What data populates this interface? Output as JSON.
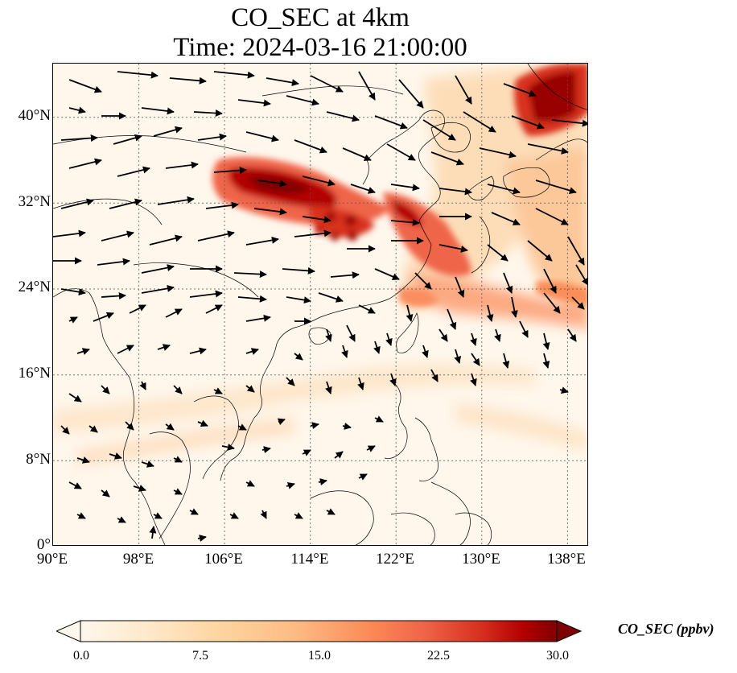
{
  "title": {
    "line1": "CO_SEC at 4km",
    "line2": "Time: 2024-03-16 21:00:00"
  },
  "map": {
    "lon_range": [
      90,
      140
    ],
    "lat_range": [
      0,
      45
    ],
    "lon_ticks": [
      "90°E",
      "98°E",
      "106°E",
      "114°E",
      "122°E",
      "130°E",
      "138°E"
    ],
    "lat_ticks": [
      "0°",
      "8°N",
      "16°N",
      "24°N",
      "32°N",
      "40°N"
    ],
    "gridlines": true,
    "field": "CO_SEC",
    "vectors": "wind arrows",
    "colors": {
      "background": "#fff7ec",
      "low": "#fdd49e",
      "mid": "#ef6548",
      "high": "#7f0000",
      "coastline": "#000000"
    }
  },
  "colorbar": {
    "title": "CO_SEC (ppbv)",
    "tick_labels": [
      "0.0",
      "7.5",
      "15.0",
      "22.5",
      "30.0"
    ],
    "range": [
      0,
      30
    ],
    "extend": "both",
    "colormap": "OrRd"
  }
}
